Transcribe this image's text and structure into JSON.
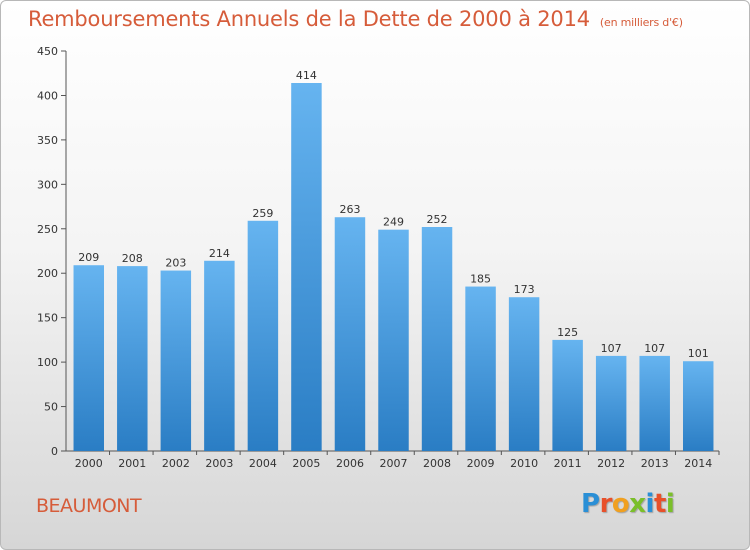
{
  "chart_data": {
    "type": "bar",
    "title": "Remboursements Annuels de la Dette de 2000 à 2014",
    "unit": "(en milliers d'€)",
    "categories": [
      "2000",
      "2001",
      "2002",
      "2003",
      "2004",
      "2005",
      "2006",
      "2007",
      "2008",
      "2009",
      "2010",
      "2011",
      "2012",
      "2013",
      "2014"
    ],
    "values": [
      209,
      208,
      203,
      214,
      259,
      414,
      263,
      249,
      252,
      185,
      173,
      125,
      107,
      107,
      101
    ],
    "ylim": [
      0,
      450
    ],
    "yticks": [
      0,
      50,
      100,
      150,
      200,
      250,
      300,
      350,
      400,
      450
    ],
    "grid": false,
    "bar_color": "#4a9de0"
  },
  "footer": {
    "commune": "BEAUMONT",
    "logo_letters": [
      {
        "ch": "P",
        "color": "#2a8fd6"
      },
      {
        "ch": "r",
        "color": "#e8502a"
      },
      {
        "ch": "o",
        "color": "#f0a020"
      },
      {
        "ch": "x",
        "color": "#7bbf2a"
      },
      {
        "ch": "i",
        "color": "#2a8fd6"
      },
      {
        "ch": "t",
        "color": "#e8502a"
      },
      {
        "ch": "i",
        "color": "#7bbf2a"
      }
    ]
  }
}
